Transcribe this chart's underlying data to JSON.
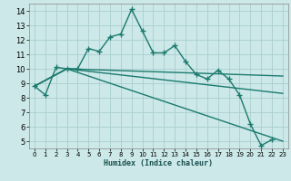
{
  "xlabel": "Humidex (Indice chaleur)",
  "xlim": [
    -0.5,
    23.5
  ],
  "ylim": [
    4.5,
    14.5
  ],
  "yticks": [
    5,
    6,
    7,
    8,
    9,
    10,
    11,
    12,
    13,
    14
  ],
  "xticks": [
    0,
    1,
    2,
    3,
    4,
    5,
    6,
    7,
    8,
    9,
    10,
    11,
    12,
    13,
    14,
    15,
    16,
    17,
    18,
    19,
    20,
    21,
    22,
    23
  ],
  "background_color": "#cce8e8",
  "grid_color": "#aacece",
  "line_color": "#1a7a6e",
  "line_width": 1.0,
  "marker": "+",
  "marker_size": 4,
  "series_main": {
    "x": [
      0,
      1,
      2,
      3,
      4,
      5,
      6,
      7,
      8,
      9,
      10,
      11,
      12,
      13,
      14,
      15,
      16,
      17,
      18,
      19,
      20,
      21,
      22
    ],
    "y": [
      8.8,
      8.2,
      10.1,
      10.0,
      10.0,
      11.4,
      11.2,
      12.2,
      12.4,
      14.1,
      12.6,
      11.1,
      11.1,
      11.6,
      10.5,
      9.6,
      9.3,
      9.9,
      9.3,
      8.2,
      6.2,
      4.7,
      5.1
    ]
  },
  "series_flat": [
    {
      "x": [
        0,
        3,
        23
      ],
      "y": [
        8.8,
        10.0,
        9.5
      ]
    },
    {
      "x": [
        0,
        3,
        23
      ],
      "y": [
        8.8,
        10.0,
        8.3
      ]
    },
    {
      "x": [
        0,
        3,
        23
      ],
      "y": [
        8.8,
        10.0,
        5.0
      ]
    }
  ]
}
